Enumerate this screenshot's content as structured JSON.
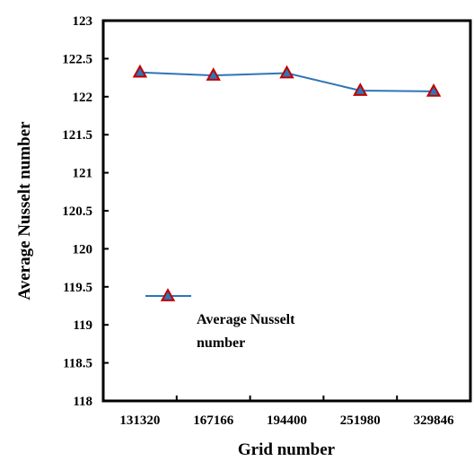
{
  "chart_data": {
    "type": "line",
    "title": "",
    "xlabel": "Grid number",
    "ylabel": "Average Nusselt number",
    "categories": [
      "131320",
      "167166",
      "194400",
      "251980",
      "329846"
    ],
    "ylim": [
      118,
      123
    ],
    "yticks": [
      "118",
      "118.5",
      "119",
      "119.5",
      "120",
      "120.5",
      "121",
      "121.5",
      "122",
      "122.5",
      "123"
    ],
    "series": [
      {
        "name": "Average Nusselt number",
        "legend_lines": [
          "Average Nusselt",
          "number"
        ],
        "values": [
          122.32,
          122.28,
          122.31,
          122.08,
          122.07
        ],
        "line_color": "#2e75b6",
        "marker": "triangle",
        "marker_fill": "#2e75b6",
        "marker_edge": "#c00000"
      }
    ],
    "grid": false,
    "legend_position": "lower-left inside plot"
  }
}
